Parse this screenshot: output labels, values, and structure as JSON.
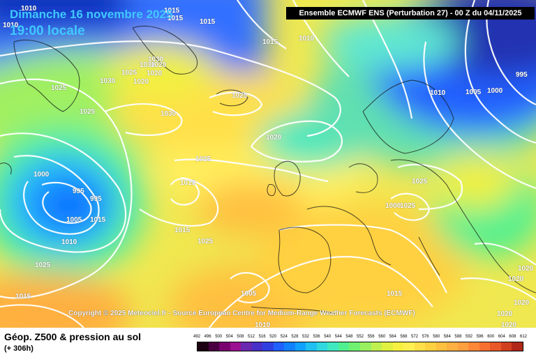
{
  "header": {
    "date_title": "Dimanche 16 novembre 2025",
    "time_title": "19:00 locale",
    "run_info": "Ensemble ECMWF ENS  (Perturbation 27)  -  00 Z du 04/11/2025"
  },
  "map": {
    "copyright": "Copyright © 2025 Meteociel.fr - Source European Centre for Medium-Range Weather Forecasts (ECMWF)",
    "isobar_labels": [
      "1010",
      "1015",
      "1015",
      "1015",
      "1010",
      "1015",
      "1010",
      "1030",
      "1030",
      "1020",
      "1025",
      "1020",
      "1030",
      "1020",
      "1025",
      "1025",
      "1025",
      "1030",
      "1010",
      "1005",
      "1000",
      "995",
      "1025",
      "1020",
      "1000",
      "995",
      "995",
      "1015",
      "1025",
      "1025",
      "1000",
      "1005",
      "1015",
      "1010",
      "1015",
      "1025",
      "1025",
      "1015",
      "1015",
      "1005",
      "1010",
      "1020",
      "1020",
      "1020",
      "1020",
      "1020"
    ]
  },
  "footer": {
    "parameter_title": "Géop. Z500 & pression au sol",
    "lead_time": "(+ 306h)"
  },
  "color_scale": {
    "labels": [
      "492",
      "496",
      "500",
      "504",
      "508",
      "512",
      "516",
      "520",
      "524",
      "528",
      "532",
      "536",
      "540",
      "544",
      "548",
      "552",
      "556",
      "560",
      "564",
      "568",
      "572",
      "576",
      "580",
      "584",
      "588",
      "592",
      "596",
      "600",
      "604",
      "608",
      "612"
    ],
    "colors": [
      "#1a0010",
      "#4a0040",
      "#7a0070",
      "#9a1090",
      "#6a28b0",
      "#4830c8",
      "#3040e0",
      "#2060ff",
      "#1080ff",
      "#10a0ff",
      "#20c0f0",
      "#30d8e0",
      "#40e8c0",
      "#50f090",
      "#70f070",
      "#98f060",
      "#c0f050",
      "#e0f040",
      "#f8f040",
      "#fff050",
      "#ffe048",
      "#ffd040",
      "#ffc040",
      "#ffb040",
      "#ffa040",
      "#ff8838",
      "#f87030",
      "#e85828",
      "#d04020",
      "#b02818"
    ]
  }
}
